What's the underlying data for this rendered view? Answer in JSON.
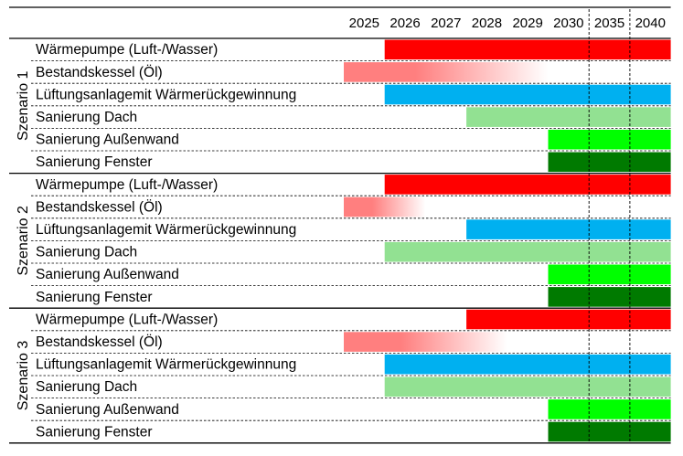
{
  "chart_data": {
    "type": "gantt",
    "years": [
      "2025",
      "2026",
      "2027",
      "2028",
      "2029",
      "2030",
      "2035",
      "2040"
    ],
    "dashed_lines_at": [
      "2035",
      "2040"
    ],
    "scenarios": [
      {
        "name": "Szenario 1",
        "tasks": [
          {
            "label": "Wärmepumpe (Luft-/Wasser)",
            "start": "2026",
            "end": "2040",
            "color": "#ff0000",
            "fade": false
          },
          {
            "label": "Bestandskessel (Öl)",
            "start": "2025",
            "end": "2029",
            "color": "#ff7f7f",
            "fade": true
          },
          {
            "label": "Lüftungsanlagemit Wärmerückgewinnung",
            "start": "2026",
            "end": "2040",
            "color": "#00b0f0",
            "fade": false
          },
          {
            "label": "Sanierung Dach",
            "start": "2028",
            "end": "2040",
            "color": "#92e192",
            "fade": false
          },
          {
            "label": "Sanierung Außenwand",
            "start": "2030",
            "end": "2040",
            "color": "#00ff00",
            "fade": false
          },
          {
            "label": "Sanierung Fenster",
            "start": "2030",
            "end": "2040",
            "color": "#007a00",
            "fade": false
          }
        ]
      },
      {
        "name": "Szenario 2",
        "tasks": [
          {
            "label": "Wärmepumpe (Luft-/Wasser)",
            "start": "2026",
            "end": "2040",
            "color": "#ff0000",
            "fade": false
          },
          {
            "label": "Bestandskessel (Öl)",
            "start": "2025",
            "end": "2026",
            "color": "#ff7f7f",
            "fade": true
          },
          {
            "label": "Lüftungsanlagemit Wärmerückgewinnung",
            "start": "2028",
            "end": "2040",
            "color": "#00b0f0",
            "fade": false
          },
          {
            "label": "Sanierung Dach",
            "start": "2026",
            "end": "2040",
            "color": "#92e192",
            "fade": false
          },
          {
            "label": "Sanierung Außenwand",
            "start": "2030",
            "end": "2040",
            "color": "#00ff00",
            "fade": false
          },
          {
            "label": "Sanierung Fenster",
            "start": "2030",
            "end": "2040",
            "color": "#007a00",
            "fade": false
          }
        ]
      },
      {
        "name": "Szenario 3",
        "tasks": [
          {
            "label": "Wärmepumpe (Luft-/Wasser)",
            "start": "2028",
            "end": "2040",
            "color": "#ff0000",
            "fade": false
          },
          {
            "label": "Bestandskessel (Öl)",
            "start": "2025",
            "end": "2028",
            "color": "#ff7f7f",
            "fade": true
          },
          {
            "label": "Lüftungsanlagemit Wärmerückgewinnung",
            "start": "2026",
            "end": "2040",
            "color": "#00b0f0",
            "fade": false
          },
          {
            "label": "Sanierung Dach",
            "start": "2026",
            "end": "2040",
            "color": "#92e192",
            "fade": false
          },
          {
            "label": "Sanierung Außenwand",
            "start": "2030",
            "end": "2040",
            "color": "#00ff00",
            "fade": false
          },
          {
            "label": "Sanierung Fenster",
            "start": "2030",
            "end": "2040",
            "color": "#007a00",
            "fade": false
          }
        ]
      }
    ]
  }
}
